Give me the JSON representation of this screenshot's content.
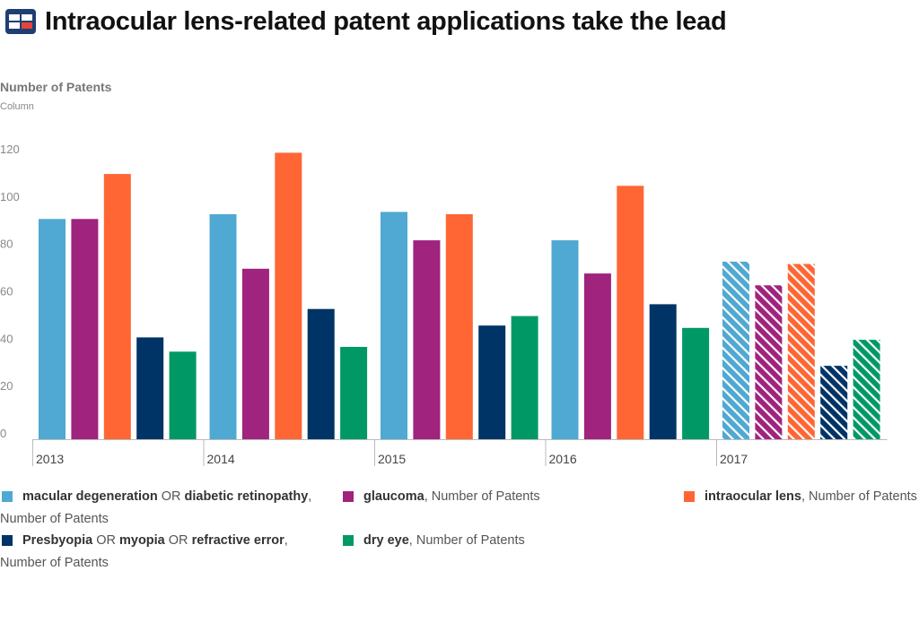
{
  "title": "Intraocular lens-related patent applications take the lead",
  "y_title": "Number of Patents",
  "y_subtitle": "Column",
  "colors": {
    "macular": "#4fa9d2",
    "glaucoma": "#a0237e",
    "iol": "#ff6633",
    "presbyopia": "#003366",
    "dryeye": "#009966"
  },
  "legend": {
    "macular": {
      "a": "macular degeneration",
      "b": " OR ",
      "c": "diabetic retinopathy",
      "d": ",",
      "line2": "Number of Patents"
    },
    "glaucoma": {
      "a": "glaucoma",
      "b": ", Number of Patents"
    },
    "iol": {
      "a": "intraocular lens",
      "b": ", Number of Patents"
    },
    "presbyopia": {
      "a": "Presbyopia",
      "b": " OR ",
      "c": "myopia",
      "d": " OR ",
      "e": "refractive error",
      "f": ",",
      "line2": "Number of Patents"
    },
    "dryeye": {
      "a": "dry eye",
      "b": ", Number of Patents"
    }
  },
  "chart_data": {
    "type": "bar",
    "categories": [
      "2013",
      "2014",
      "2015",
      "2016",
      "2017"
    ],
    "hatched_categories": [
      "2017"
    ],
    "ylabel": "Number of Patents",
    "ylim": [
      0,
      120
    ],
    "yticks": [
      0,
      20,
      40,
      60,
      80,
      100,
      120
    ],
    "grid": false,
    "legend_position": "bottom",
    "series": [
      {
        "name": "macular degeneration OR diabetic retinopathy, Number of Patents",
        "color": "#4fa9d2",
        "values": [
          93,
          95,
          96,
          84,
          75
        ]
      },
      {
        "name": "glaucoma, Number of Patents",
        "color": "#a0237e",
        "values": [
          93,
          72,
          84,
          70,
          65
        ]
      },
      {
        "name": "intraocular lens, Number of Patents",
        "color": "#ff6633",
        "values": [
          112,
          121,
          95,
          107,
          74
        ]
      },
      {
        "name": "Presbyopia OR myopia OR refractive error, Number of Patents",
        "color": "#003366",
        "values": [
          43,
          55,
          48,
          57,
          31
        ]
      },
      {
        "name": "dry eye, Number of Patents",
        "color": "#009966",
        "values": [
          37,
          39,
          52,
          47,
          42
        ]
      }
    ]
  }
}
